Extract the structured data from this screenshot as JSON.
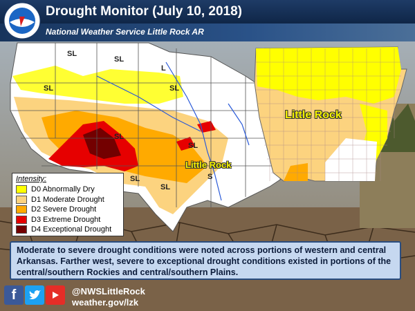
{
  "header": {
    "title": "Drought Monitor (July 10, 2018)",
    "subtitle": "National Weather Service Little Rock AR",
    "logo_text": "NATIONAL WEATHER SERVICE"
  },
  "map_labels": {
    "impact_labels": [
      "SL",
      "SL",
      "SL",
      "L",
      "SL",
      "SL",
      "SL",
      "SL",
      "SL",
      "S"
    ],
    "city_us": "Little Rock",
    "city_ar": "Little Rock"
  },
  "legend": {
    "title": "Intensity:",
    "items": [
      {
        "label": "D0 Abnormally Dry",
        "color": "#ffff00"
      },
      {
        "label": "D1 Moderate Drought",
        "color": "#fcd37f"
      },
      {
        "label": "D2 Severe Drought",
        "color": "#ffaa00"
      },
      {
        "label": "D3 Extreme Drought",
        "color": "#e60000"
      },
      {
        "label": "D4 Exceptional Drought",
        "color": "#730000"
      }
    ]
  },
  "summary": "Moderate to severe drought conditions were noted across portions of western and central Arkansas. Farther west, severe to exceptional drought conditions existed in portions of the central/southern Rockies and central/southern Plains.",
  "footer": {
    "handle": "@NWSLittleRock",
    "website": "weather.gov/lzk",
    "icons": [
      "facebook-icon",
      "twitter-icon",
      "youtube-icon"
    ]
  }
}
